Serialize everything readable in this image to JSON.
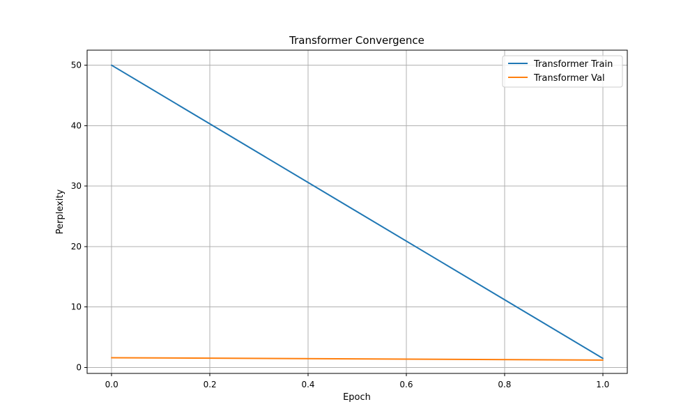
{
  "chart_data": {
    "type": "line",
    "title": "Transformer Convergence",
    "xlabel": "Epoch",
    "ylabel": "Perplexity",
    "xlim": [
      -0.05,
      1.05
    ],
    "ylim": [
      -1.0,
      52.5
    ],
    "xticks": [
      0.0,
      0.2,
      0.4,
      0.6,
      0.8,
      1.0
    ],
    "xtick_labels": [
      "0.0",
      "0.2",
      "0.4",
      "0.6",
      "0.8",
      "1.0"
    ],
    "yticks": [
      0,
      10,
      20,
      30,
      40,
      50
    ],
    "ytick_labels": [
      "0",
      "10",
      "20",
      "30",
      "40",
      "50"
    ],
    "grid": true,
    "legend_position": "top-right",
    "series": [
      {
        "name": "Transformer Train",
        "color": "#1f77b4",
        "x": [
          0.0,
          1.0
        ],
        "y": [
          50.0,
          1.5
        ]
      },
      {
        "name": "Transformer Val",
        "color": "#ff7f0e",
        "x": [
          0.0,
          1.0
        ],
        "y": [
          1.6,
          1.2
        ]
      }
    ]
  }
}
